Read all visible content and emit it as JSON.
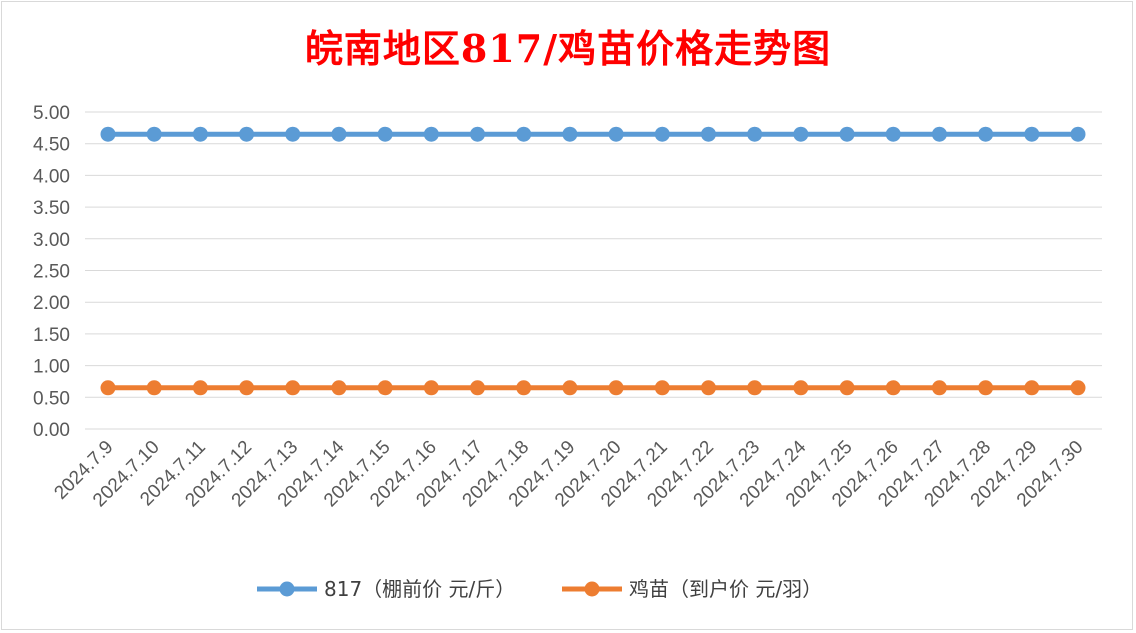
{
  "chart_data": {
    "type": "line",
    "title": "皖南地区817/鸡苗价格走势图",
    "categories": [
      "2024.7.9",
      "2024.7.10",
      "2024.7.11",
      "2024.7.12",
      "2024.7.13",
      "2024.7.14",
      "2024.7.15",
      "2024.7.16",
      "2024.7.17",
      "2024.7.18",
      "2024.7.19",
      "2024.7.20",
      "2024.7.21",
      "2024.7.22",
      "2024.7.23",
      "2024.7.24",
      "2024.7.25",
      "2024.7.26",
      "2024.7.27",
      "2024.7.28",
      "2024.7.29",
      "2024.7.30"
    ],
    "series": [
      {
        "name": "817（棚前价 元/斤）",
        "color": "#5b9bd5",
        "values": [
          4.65,
          4.65,
          4.65,
          4.65,
          4.65,
          4.65,
          4.65,
          4.65,
          4.65,
          4.65,
          4.65,
          4.65,
          4.65,
          4.65,
          4.65,
          4.65,
          4.65,
          4.65,
          4.65,
          4.65,
          4.65,
          4.65
        ]
      },
      {
        "name": "鸡苗（到户价 元/羽）",
        "color": "#ed7d31",
        "values": [
          0.65,
          0.65,
          0.65,
          0.65,
          0.65,
          0.65,
          0.65,
          0.65,
          0.65,
          0.65,
          0.65,
          0.65,
          0.65,
          0.65,
          0.65,
          0.65,
          0.65,
          0.65,
          0.65,
          0.65,
          0.65,
          0.65
        ]
      }
    ],
    "ylim": [
      0,
      5
    ],
    "yticks": [
      "0.00",
      "0.50",
      "1.00",
      "1.50",
      "2.00",
      "2.50",
      "3.00",
      "3.50",
      "4.00",
      "4.50",
      "5.00"
    ],
    "grid": true,
    "legend": "bottom"
  }
}
